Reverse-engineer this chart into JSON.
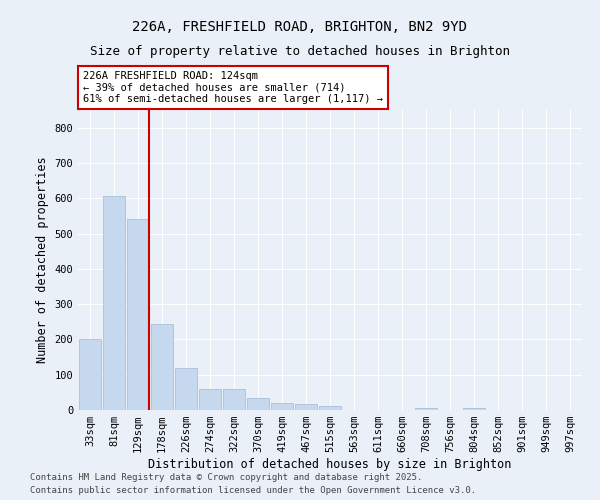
{
  "title": "226A, FRESHFIELD ROAD, BRIGHTON, BN2 9YD",
  "subtitle": "Size of property relative to detached houses in Brighton",
  "xlabel": "Distribution of detached houses by size in Brighton",
  "ylabel": "Number of detached properties",
  "categories": [
    "33sqm",
    "81sqm",
    "129sqm",
    "178sqm",
    "226sqm",
    "274sqm",
    "322sqm",
    "370sqm",
    "419sqm",
    "467sqm",
    "515sqm",
    "563sqm",
    "611sqm",
    "660sqm",
    "708sqm",
    "756sqm",
    "804sqm",
    "852sqm",
    "901sqm",
    "949sqm",
    "997sqm"
  ],
  "values": [
    200,
    605,
    540,
    245,
    120,
    60,
    60,
    35,
    20,
    18,
    10,
    0,
    0,
    0,
    7,
    0,
    5,
    0,
    0,
    0,
    0
  ],
  "bar_color": "#c5d8ed",
  "bar_edge_color": "#a0b8d8",
  "vline_x_index": 2,
  "vline_color": "#cc0000",
  "annotation_line1": "226A FRESHFIELD ROAD: 124sqm",
  "annotation_line2": "← 39% of detached houses are smaller (714)",
  "annotation_line3": "61% of semi-detached houses are larger (1,117) →",
  "annotation_box_edge_color": "#cc0000",
  "ylim_max": 850,
  "yticks": [
    0,
    100,
    200,
    300,
    400,
    500,
    600,
    700,
    800
  ],
  "footer1": "Contains HM Land Registry data © Crown copyright and database right 2025.",
  "footer2": "Contains public sector information licensed under the Open Government Licence v3.0.",
  "bg_color": "#eaf0f8",
  "title_fontsize": 10,
  "subtitle_fontsize": 9,
  "axis_label_fontsize": 8.5,
  "tick_fontsize": 7.5,
  "annotation_fontsize": 7.5,
  "footer_fontsize": 6.5
}
